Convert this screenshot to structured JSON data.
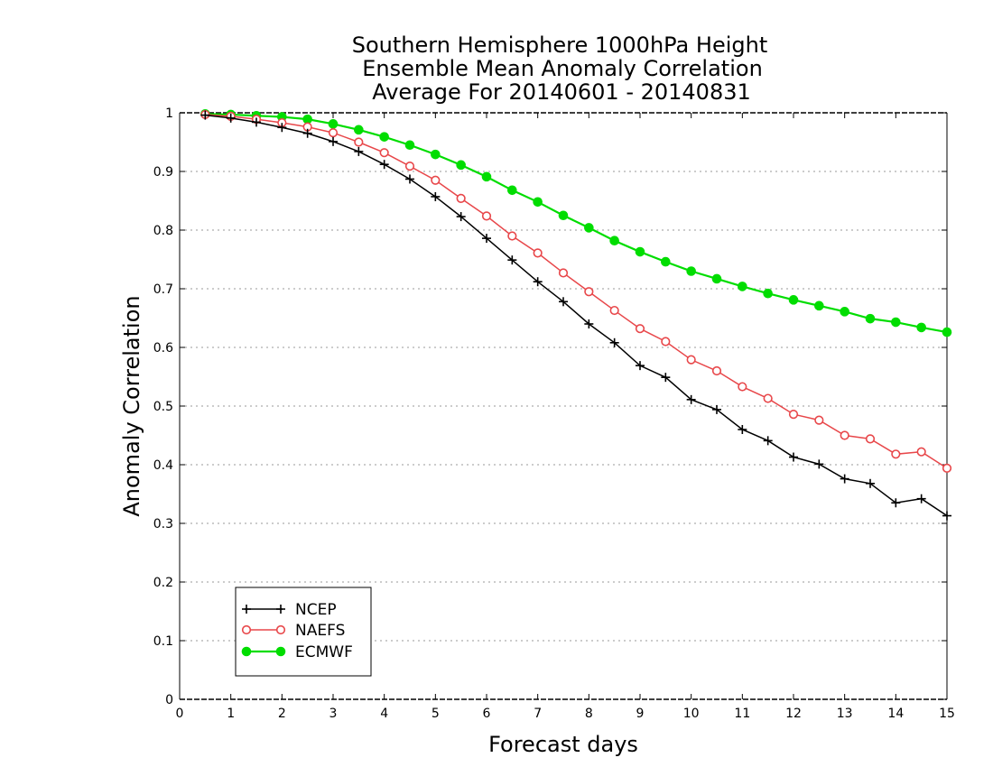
{
  "chart_data": {
    "type": "line",
    "title": [
      "Southern Hemisphere 1000hPa Height",
      "Ensemble Mean Anomaly Correlation",
      "Average For 20140601 - 20140831"
    ],
    "xlabel": "Forecast days",
    "ylabel": "Anomaly Correlation",
    "xlim": [
      0,
      15
    ],
    "ylim": [
      0,
      1
    ],
    "xticks": [
      0,
      1,
      2,
      3,
      4,
      5,
      6,
      7,
      8,
      9,
      10,
      11,
      12,
      13,
      14,
      15
    ],
    "yticks": [
      0,
      0.1,
      0.2,
      0.3,
      0.4,
      0.5,
      0.6,
      0.7,
      0.8,
      0.9,
      1
    ],
    "ytick_labels": [
      "0",
      "0.1",
      "0.2",
      "0.3",
      "0.4",
      "0.5",
      "0.6",
      "0.7",
      "0.8",
      "0.9",
      "1"
    ],
    "grid": "horizontal dotted",
    "legend_position": "bottom-left",
    "x": [
      0.5,
      1,
      1.5,
      2,
      2.5,
      3,
      3.5,
      4,
      4.5,
      5,
      5.5,
      6,
      6.5,
      7,
      7.5,
      8,
      8.5,
      9,
      9.5,
      10,
      10.5,
      11,
      11.5,
      12,
      12.5,
      13,
      13.5,
      14,
      14.5,
      15
    ],
    "series": [
      {
        "name": "NCEP",
        "color": "#000000",
        "marker": "plus",
        "values": [
          0.996,
          0.991,
          0.984,
          0.975,
          0.965,
          0.951,
          0.934,
          0.912,
          0.887,
          0.857,
          0.823,
          0.786,
          0.749,
          0.712,
          0.678,
          0.64,
          0.608,
          0.569,
          0.549,
          0.511,
          0.494,
          0.46,
          0.441,
          0.413,
          0.401,
          0.376,
          0.368,
          0.335,
          0.342,
          0.313
        ]
      },
      {
        "name": "NAEFS",
        "color": "#e8474a",
        "marker": "open-circle",
        "values": [
          0.997,
          0.994,
          0.989,
          0.983,
          0.976,
          0.966,
          0.95,
          0.932,
          0.909,
          0.885,
          0.854,
          0.824,
          0.79,
          0.761,
          0.727,
          0.695,
          0.663,
          0.632,
          0.61,
          0.579,
          0.56,
          0.533,
          0.513,
          0.486,
          0.476,
          0.45,
          0.444,
          0.418,
          0.422,
          0.394
        ]
      },
      {
        "name": "ECMWF",
        "color": "#00dd00",
        "marker": "filled-circle",
        "values": [
          0.998,
          0.997,
          0.995,
          0.993,
          0.989,
          0.981,
          0.971,
          0.959,
          0.945,
          0.929,
          0.911,
          0.891,
          0.868,
          0.848,
          0.825,
          0.804,
          0.782,
          0.763,
          0.746,
          0.73,
          0.717,
          0.704,
          0.692,
          0.681,
          0.671,
          0.661,
          0.649,
          0.643,
          0.634,
          0.626
        ]
      }
    ]
  }
}
